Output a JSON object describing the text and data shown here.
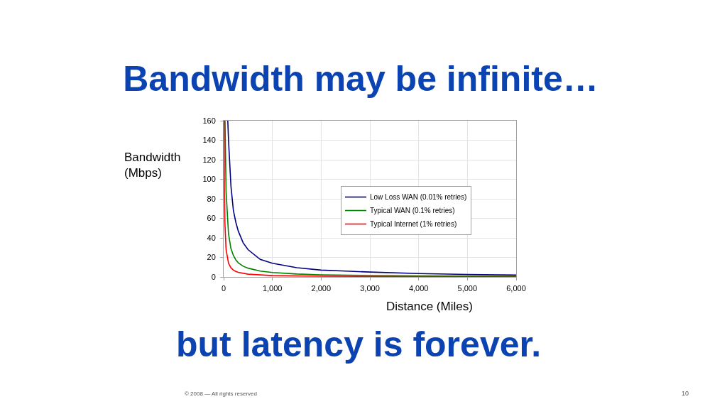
{
  "chart_data": {
    "type": "line",
    "title": "Bandwidth may be infinite…",
    "xlabel": "Distance (Miles)",
    "ylabel": "Bandwidth\n(Mbps)",
    "annotations": [
      "but latency is forever.",
      "© 2008 — All rights reserved",
      "10"
    ],
    "xlim": [
      0,
      6000
    ],
    "xticks": [
      0,
      {
        "value": 1000,
        "label": "1,000"
      },
      {
        "value": 2000,
        "label": "2,000"
      },
      {
        "value": 3000,
        "label": "3,000"
      },
      {
        "value": 4000,
        "label": "4,000"
      },
      {
        "value": 5000,
        "label": "5,000"
      },
      {
        "value": 6000,
        "label": "6,000"
      }
    ],
    "ylim": [
      0,
      160
    ],
    "yticks": [
      0,
      20,
      40,
      60,
      80,
      100,
      120,
      140,
      160
    ],
    "grid": true,
    "legend": "right",
    "marker": "none",
    "line_style": "solid",
    "series": [
      {
        "name": "Low Loss WAN (0.01% retries)",
        "color": "#000080",
        "x": [
          85,
          100,
          150,
          200,
          250,
          300,
          400,
          500,
          750,
          1000,
          1500,
          2000,
          2500,
          3000,
          4000,
          5000,
          6000
        ],
        "values": [
          160,
          140,
          93,
          68,
          56,
          47,
          35,
          28,
          18,
          14,
          9.5,
          7,
          6,
          5,
          3.5,
          2.5,
          2
        ]
      },
      {
        "name": "Typical WAN (0.1% retries)",
        "color": "#008000",
        "x": [
          28,
          50,
          100,
          150,
          200,
          250,
          300,
          400,
          500,
          750,
          1000,
          1500,
          2000,
          3000,
          4000,
          5000,
          6000
        ],
        "values": [
          160,
          88,
          44,
          29,
          22,
          17.5,
          14.5,
          11,
          9,
          6,
          4.5,
          3,
          2.2,
          1.5,
          1.1,
          0.9,
          0.7
        ]
      },
      {
        "name": "Typical Internet (1% retries)",
        "color": "#ff0000",
        "x": [
          9,
          15,
          25,
          50,
          100,
          150,
          200,
          250,
          300,
          500,
          1000,
          2000,
          4000,
          6000
        ],
        "values": [
          160,
          93,
          56,
          28,
          14,
          9.3,
          7,
          5.6,
          4.7,
          2.8,
          1.4,
          0.7,
          0.4,
          0.3
        ]
      }
    ]
  }
}
